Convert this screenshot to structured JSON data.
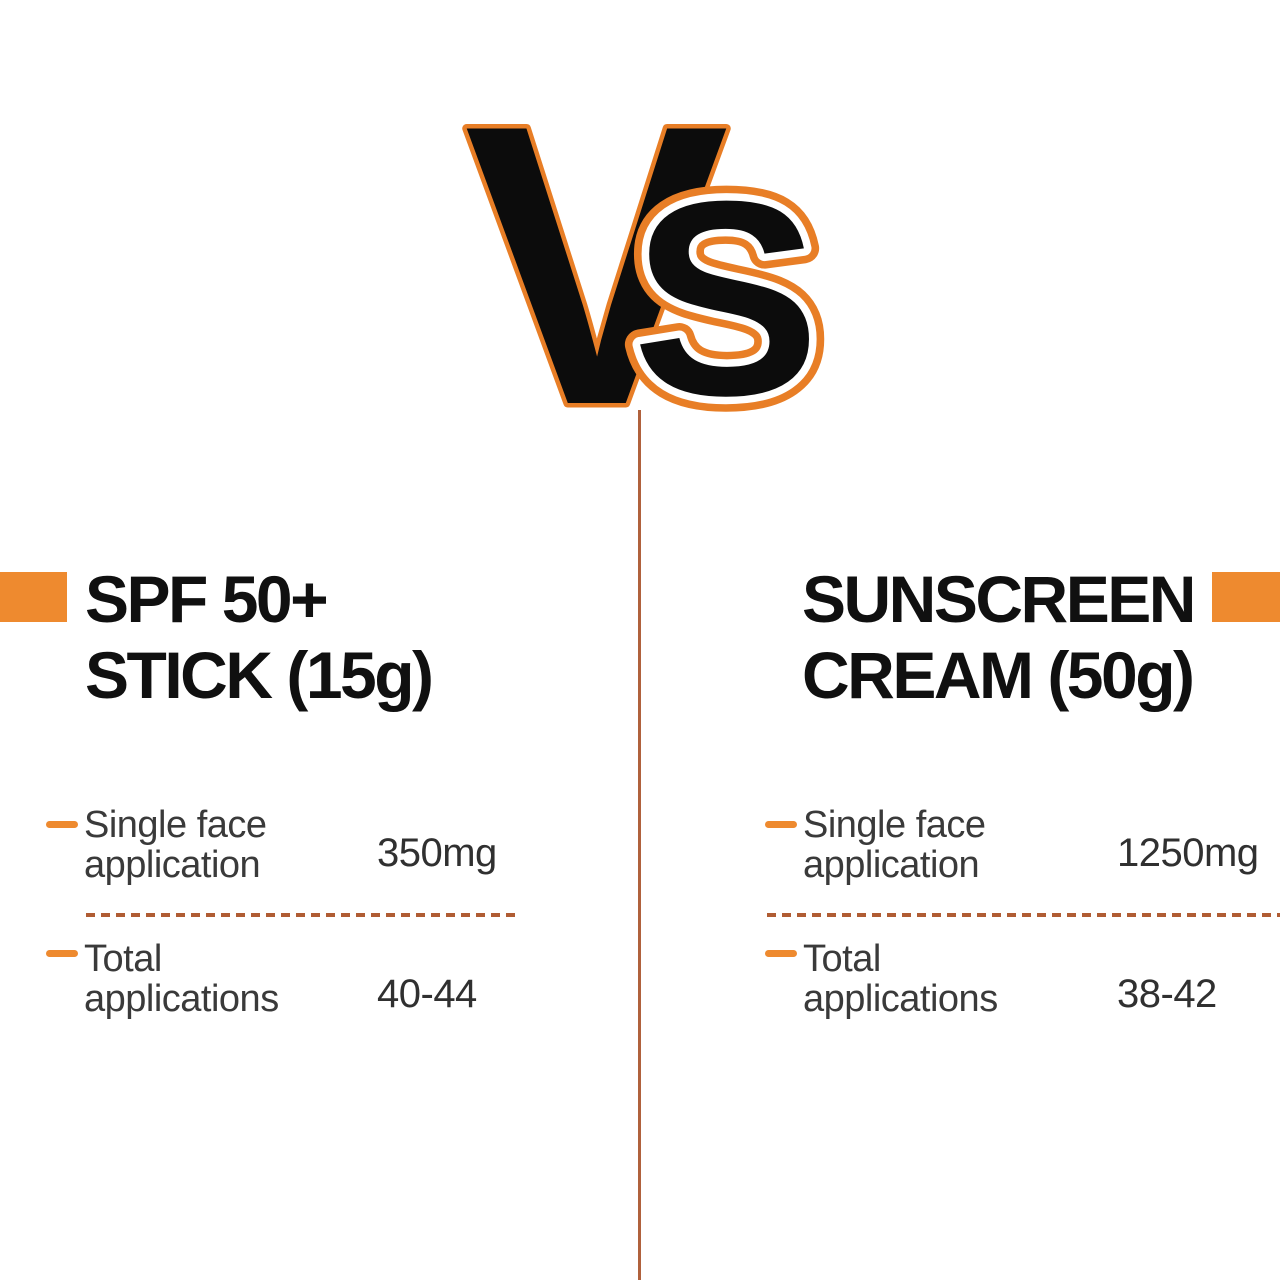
{
  "colors": {
    "accent_orange": "#EE8A2F",
    "outline_orange": "#E87E26",
    "dash_color": "#B05C33",
    "line_color": "#B0613C",
    "title_color": "#101010",
    "label_color": "#3A3A3A",
    "value_color": "#303030"
  },
  "vs_badge": {
    "letter_v": "V",
    "letter_s": "S"
  },
  "columns": {
    "left": {
      "title_line1": "SPF 50+",
      "title_line2": "STICK (15g)",
      "rows": [
        {
          "label_line1": "Single face",
          "label_line2": "application",
          "value": "350mg"
        },
        {
          "label_line1": "Total",
          "label_line2": "applications",
          "value": "40-44"
        }
      ]
    },
    "right": {
      "title_line1": "SUNSCREEN",
      "title_line2": "CREAM (50g)",
      "rows": [
        {
          "label_line1": "Single face",
          "label_line2": "application",
          "value": "1250mg"
        },
        {
          "label_line1": "Total",
          "label_line2": "applications",
          "value": "38-42"
        }
      ]
    }
  }
}
